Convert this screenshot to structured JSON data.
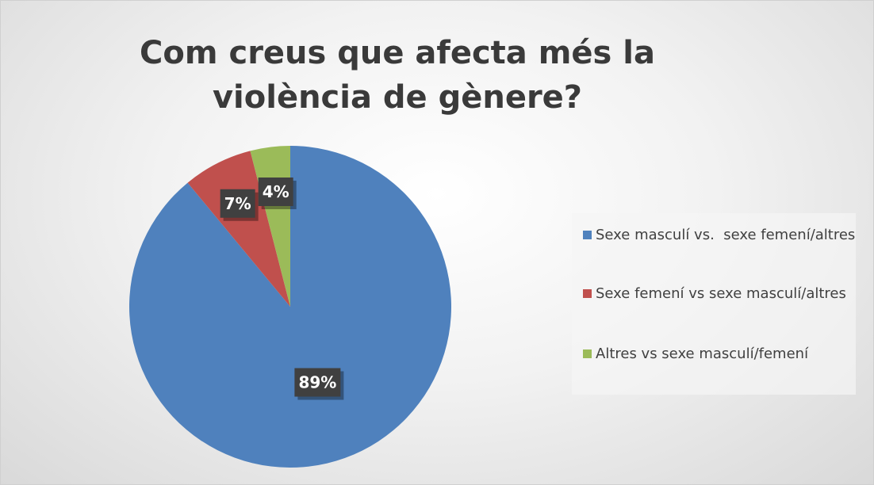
{
  "chart_data": {
    "type": "pie",
    "title": "Com creus que afecta més la violència de gènere?",
    "categories": [
      "Sexe masculí vs.  sexe femení/altres",
      "Sexe femení vs sexe masculí/altres",
      "Altres vs sexe masculí/femení"
    ],
    "values": [
      89,
      7,
      4
    ],
    "value_labels": [
      "89%",
      "7%",
      "4%"
    ],
    "colors": [
      "#4f81bd",
      "#c0504d",
      "#9bbb59"
    ],
    "legend": "right"
  }
}
